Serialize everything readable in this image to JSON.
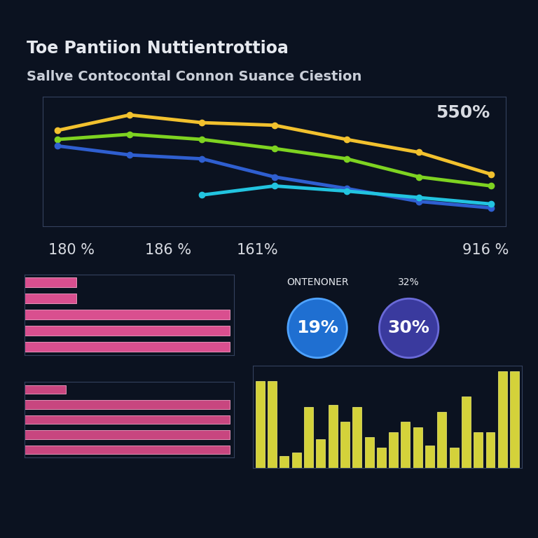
{
  "chart_data": [
    {
      "type": "line",
      "title": "Toe Pantiion Nuttientrottioa",
      "subtitle": "Sallve Contocontal Connon Suance Ciestion",
      "categories": [
        null,
        null,
        null,
        null,
        null,
        null,
        null
      ],
      "series": [
        {
          "color": "#f2c12e",
          "values": [
            74,
            86,
            80,
            78,
            67,
            57,
            40
          ]
        },
        {
          "color": "#7ed321",
          "values": [
            67,
            71,
            67,
            60,
            52,
            38,
            31
          ]
        },
        {
          "color": "#2f5fd0",
          "values": [
            62,
            55,
            52,
            38,
            29,
            19,
            14
          ]
        },
        {
          "color": "#22c4e0",
          "values": [
            null,
            null,
            24,
            31,
            27,
            22,
            17
          ]
        }
      ],
      "ylim": [
        0,
        100
      ],
      "tick_labels": false,
      "marker": "o",
      "annotations": [
        "550%",
        "180 %",
        "186 %",
        "161%",
        "916 %"
      ]
    },
    {
      "type": "bar",
      "orientation": "horizontal",
      "categories": [
        null,
        null,
        null,
        null,
        null
      ],
      "values": [
        25,
        25,
        98,
        98,
        98
      ],
      "color": "#d94f8f",
      "xlim": [
        0,
        100
      ],
      "tick_labels": false
    },
    {
      "type": "bar",
      "orientation": "horizontal",
      "categories": [
        null,
        null,
        null,
        null,
        null
      ],
      "values": [
        20,
        98,
        98,
        98,
        98
      ],
      "color": "#c8467f",
      "xlim": [
        0,
        100
      ],
      "tick_labels": false
    },
    {
      "type": "bar",
      "categories": [
        null,
        null,
        null,
        null,
        null,
        null,
        null,
        null,
        null,
        null,
        null,
        null,
        null,
        null,
        null,
        null,
        null,
        null,
        null,
        null,
        null,
        null
      ],
      "values": [
        85,
        85,
        12,
        15,
        60,
        28,
        62,
        45,
        60,
        30,
        20,
        35,
        45,
        40,
        22,
        55,
        20,
        70,
        35,
        35,
        95,
        95
      ],
      "color": "#d4d23a",
      "ylim": [
        0,
        100
      ],
      "tick_labels": false,
      "annotations": [
        "ONTENONER",
        "19%",
        "30%",
        "32%"
      ]
    }
  ]
}
